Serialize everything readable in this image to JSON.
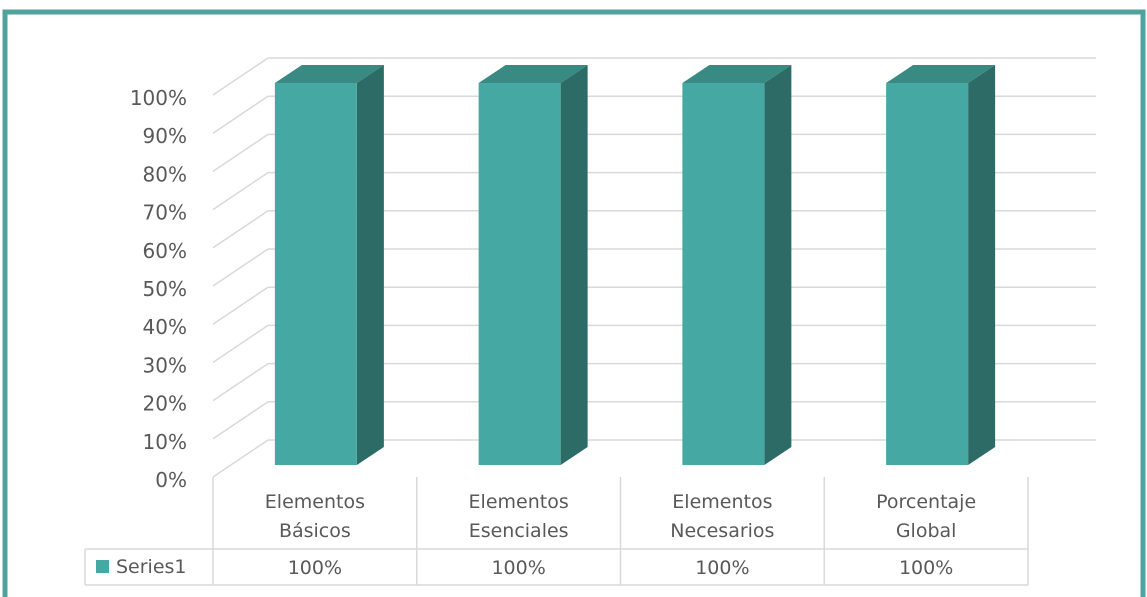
{
  "chart_data": {
    "type": "bar",
    "style": "3d-column-with-data-table",
    "categories": [
      [
        "Elementos",
        "Básicos"
      ],
      [
        "Elementos",
        "Esenciales"
      ],
      [
        "Elementos",
        "Necesarios"
      ],
      [
        "Porcentaje",
        "Global"
      ]
    ],
    "series": [
      {
        "name": "Series1",
        "values": [
          100,
          100,
          100,
          100
        ],
        "labels": [
          "100%",
          "100%",
          "100%",
          "100%"
        ]
      }
    ],
    "ylim": [
      0,
      100
    ],
    "yticks": [
      0,
      10,
      20,
      30,
      40,
      50,
      60,
      70,
      80,
      90,
      100
    ],
    "ytick_labels": [
      "0%",
      "10%",
      "20%",
      "30%",
      "40%",
      "50%",
      "60%",
      "70%",
      "80%",
      "90%",
      "100%"
    ],
    "grid": true,
    "legend": "data-table-left",
    "colors": {
      "bar_front": "#46a8a2",
      "bar_side": "#2d6b66",
      "bar_top": "#3a8a84",
      "frame_border": "#4fa39c",
      "gridline": "#d9d9d9",
      "text": "#595959"
    }
  }
}
